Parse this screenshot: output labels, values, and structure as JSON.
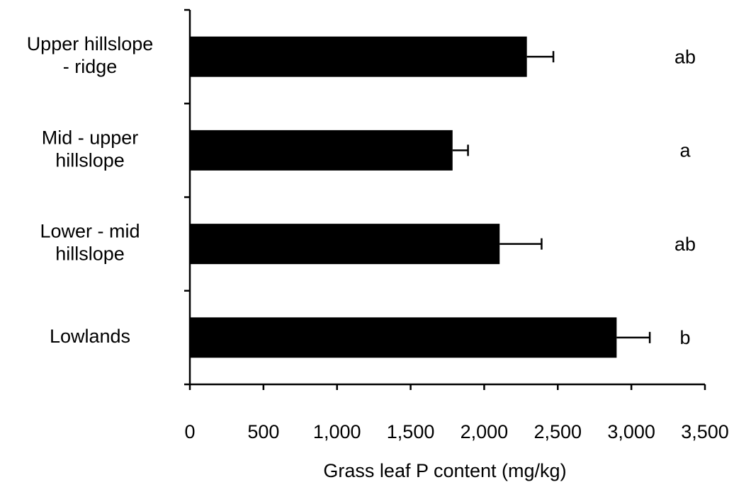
{
  "chart_data": {
    "type": "bar",
    "orientation": "horizontal",
    "categories": [
      [
        "Upper hillslope",
        "- ridge"
      ],
      [
        "Mid - upper",
        "hillslope"
      ],
      [
        "Lower - mid",
        "hillslope"
      ],
      [
        "Lowlands"
      ]
    ],
    "values": [
      2290,
      1785,
      2105,
      2900
    ],
    "error_plus": [
      180,
      105,
      285,
      225
    ],
    "significance_letters": [
      "ab",
      "a",
      "ab",
      "b"
    ],
    "xlabel": "Grass leaf P content (mg/kg)",
    "ylabel": "",
    "xlim": [
      0,
      3500
    ],
    "xticks": [
      0,
      500,
      1000,
      1500,
      2000,
      2500,
      3000,
      3500
    ],
    "xtick_labels": [
      "0",
      "500",
      "1,000",
      "1,500",
      "2,000",
      "2,500",
      "3,000",
      "3,500"
    ],
    "grid": false,
    "legend": "none",
    "bar_color": "#000000"
  }
}
